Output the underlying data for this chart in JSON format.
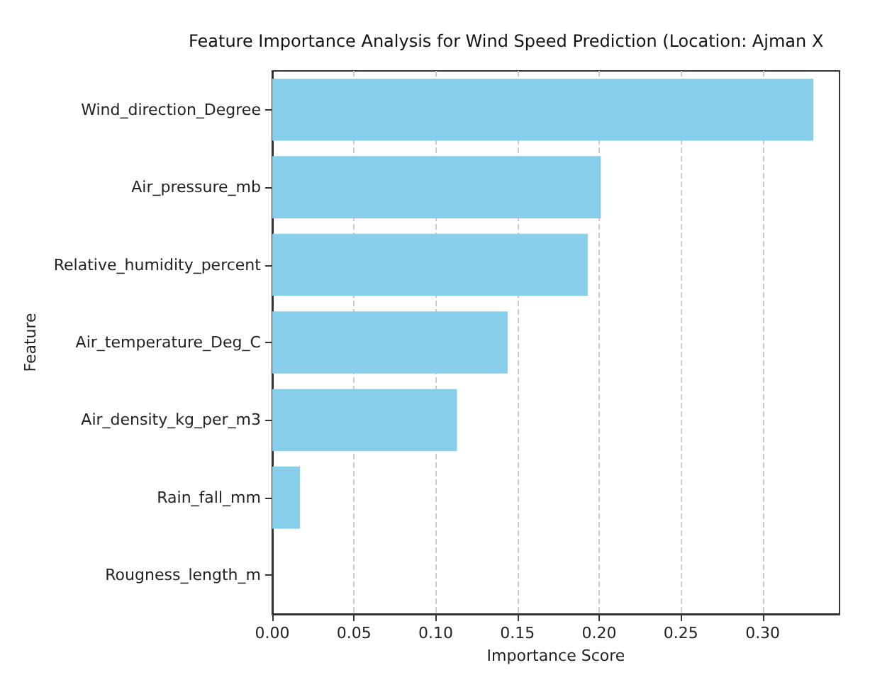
{
  "chart_data": {
    "type": "bar",
    "orientation": "horizontal",
    "title": "Feature Importance Analysis for Wind Speed Prediction (Location: Ajman X",
    "xlabel": "Importance Score",
    "ylabel": "Feature",
    "categories": [
      "Wind_direction_Degree",
      "Air_pressure_mb",
      "Relative_humidity_percent",
      "Air_temperature_Deg_C",
      "Air_density_kg_per_m3",
      "Rain_fall_mm",
      "Rougness_length_m"
    ],
    "values": [
      0.331,
      0.201,
      0.193,
      0.144,
      0.113,
      0.017,
      0
    ],
    "color": "#87ceeb",
    "xlim": [
      0,
      0.347
    ],
    "xticks": [
      {
        "value": 0,
        "label": "0.00"
      },
      {
        "value": 0.05,
        "label": "0.05"
      },
      {
        "value": 0.1,
        "label": "0.10"
      },
      {
        "value": 0.15,
        "label": "0.15"
      },
      {
        "value": 0.2,
        "label": "0.20"
      },
      {
        "value": 0.25,
        "label": "0.25"
      },
      {
        "value": 0.3,
        "label": "0.30"
      }
    ],
    "grid": "x"
  }
}
